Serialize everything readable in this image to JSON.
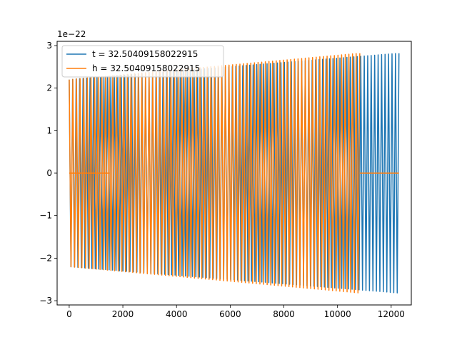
{
  "chart_data": {
    "type": "line",
    "title": "",
    "xlabel": "",
    "ylabel": "",
    "y_offset_label": "1e−22",
    "xlim": [
      -450,
      12750
    ],
    "ylim": [
      -3.1,
      3.1
    ],
    "x_ticks": [
      0,
      2000,
      4000,
      6000,
      8000,
      10000,
      12000
    ],
    "x_tick_labels": [
      "0",
      "2000",
      "4000",
      "6000",
      "8000",
      "10000",
      "12000"
    ],
    "y_ticks": [
      -3,
      -2,
      -1,
      0,
      1,
      2,
      3
    ],
    "y_tick_labels": [
      "−3",
      "−2",
      "−1",
      "0",
      "1",
      "2",
      "3"
    ],
    "grid": false,
    "legend_position": "top-left",
    "series": [
      {
        "name": "t = 32.50409158022915",
        "color": "#1f77b4",
        "x_start": 0,
        "x_end": 12290,
        "cycles": 95,
        "amplitude_start": 2.2,
        "amplitude_end": 2.82,
        "zero_segments": []
      },
      {
        "name": "h = 32.50409158022915",
        "color": "#ff7f0e",
        "x_start": 0,
        "x_end": 10830,
        "cycles": 80,
        "amplitude_start": 2.2,
        "amplitude_end": 2.82,
        "zero_segments": [
          [
            0,
            1500
          ],
          [
            10830,
            12290
          ]
        ]
      }
    ]
  }
}
